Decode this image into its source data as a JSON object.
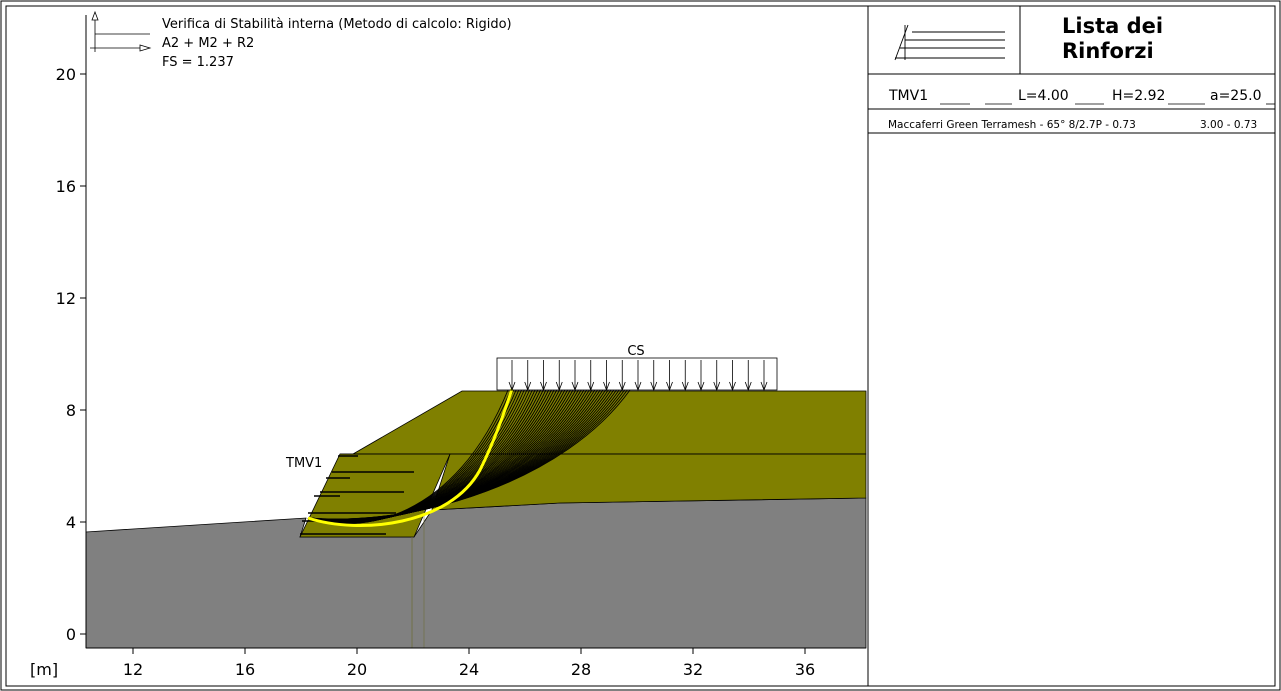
{
  "header": {
    "line1": "Verifica di Stabilità interna (Metodo di calcolo: Rigido)",
    "line2": "A2 + M2 + R2",
    "line3": "FS = 1.237"
  },
  "axes": {
    "unit": "[m]",
    "x_ticks": [
      "12",
      "16",
      "20",
      "24",
      "28",
      "32",
      "36"
    ],
    "y_ticks": [
      "20",
      "16",
      "12",
      "8",
      "4",
      "0"
    ]
  },
  "labels": {
    "surcharge": "CS",
    "reinforcement": "TMV1"
  },
  "legend": {
    "title": "Lista dei Rinforzi",
    "title_line1": "Lista dei",
    "title_line2": "Rinforzi",
    "row_name": "TMV1",
    "row_l": "L=4.00",
    "row_h": "H=2.92",
    "row_a": "a=25.0",
    "product": "Maccaferri Green Terramesh - 65° 8/2.7P - 0.73",
    "product_values": "3.00 - 0.73"
  },
  "colors": {
    "foundation": "#808080",
    "fill_soil": "#808000",
    "critical_surface": "#ffff00",
    "trial_surfaces": "#000000"
  }
}
